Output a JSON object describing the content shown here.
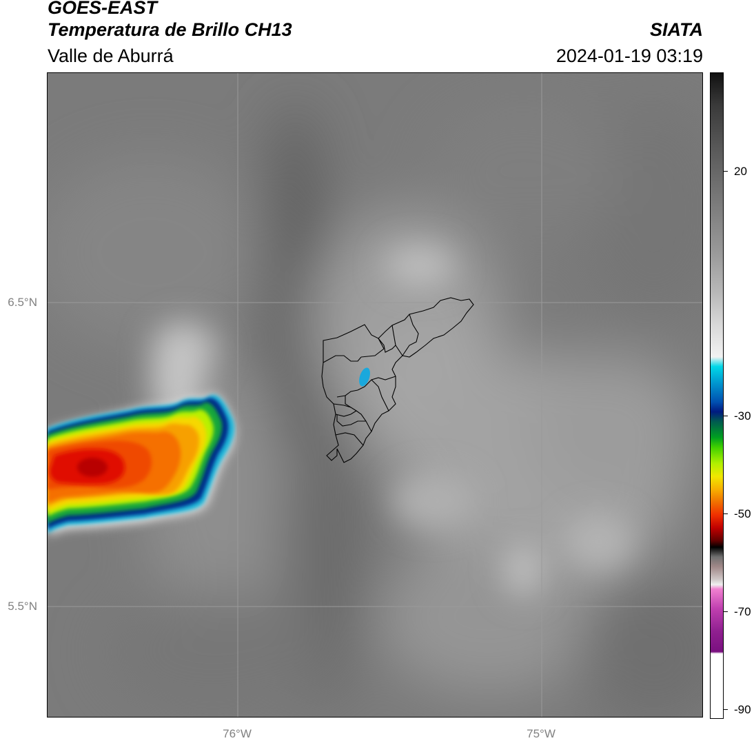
{
  "header": {
    "satellite": "GOES-EAST",
    "product": "Temperatura de Brillo CH13",
    "region": "Valle de Aburrá",
    "agency": "SIATA",
    "datetime": "2024-01-19 03:19"
  },
  "axes": {
    "lat_labels": [
      "6.5°N",
      "5.5°N"
    ],
    "lon_labels": [
      "76°W",
      "75°W"
    ],
    "lat_values": [
      6.5,
      5.5
    ],
    "lon_values": [
      -76,
      -75
    ]
  },
  "colorbar": {
    "ticks": [
      "20",
      "-30",
      "-50",
      "-70",
      "-90"
    ],
    "tick_values": [
      20,
      -30,
      -50,
      -70,
      -90
    ],
    "range": [
      -95,
      40
    ]
  },
  "colors": {
    "background_gray": "#7d7d7d",
    "border": "#000000",
    "grid": "#9a9a9a",
    "municipal_boundaries": "#000000"
  }
}
